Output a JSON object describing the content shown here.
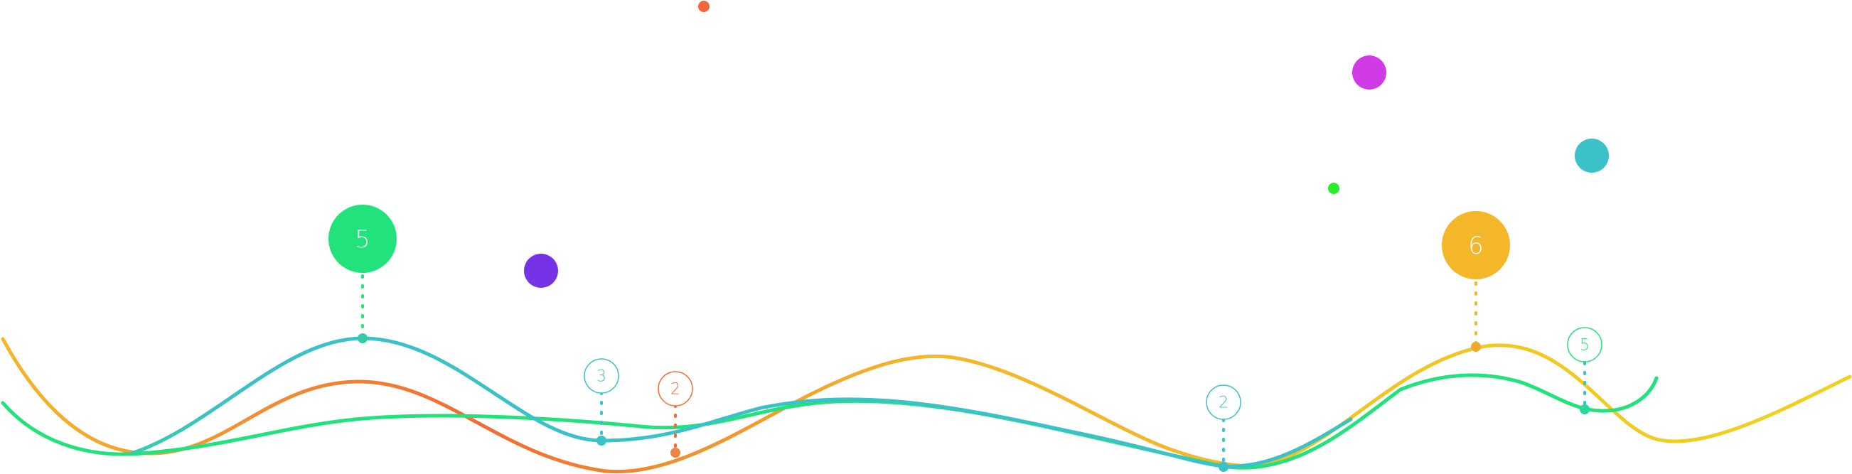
{
  "colors": {
    "yellow": "#F4B72A",
    "orange": "#F26B35",
    "green": "#22E27B",
    "teal": "#3BC1C8",
    "purple": "#7633E6",
    "magenta": "#D13BE6",
    "lime": "#27EE2C",
    "red_orange": "#F6653A"
  },
  "markers": [
    {
      "label": "5",
      "style": "filled",
      "color": "#22E27B"
    },
    {
      "label": "3",
      "style": "outline",
      "color": "#3BC1C8"
    },
    {
      "label": "2",
      "style": "outline",
      "color": "#F26B35"
    },
    {
      "label": "2",
      "style": "outline",
      "color": "#3BC1C8"
    },
    {
      "label": "6",
      "style": "filled",
      "color": "#F4B72A"
    },
    {
      "label": "5",
      "style": "outline",
      "color": "#22E27B"
    }
  ],
  "dots": [
    {
      "name": "red-orange-dot",
      "color": "#F6653A"
    },
    {
      "name": "magenta-dot",
      "color": "#D13BE6"
    },
    {
      "name": "teal-dot",
      "color": "#3BC1C8"
    },
    {
      "name": "lime-dot",
      "color": "#27EE2C"
    },
    {
      "name": "purple-dot",
      "color": "#7633E6"
    }
  ]
}
